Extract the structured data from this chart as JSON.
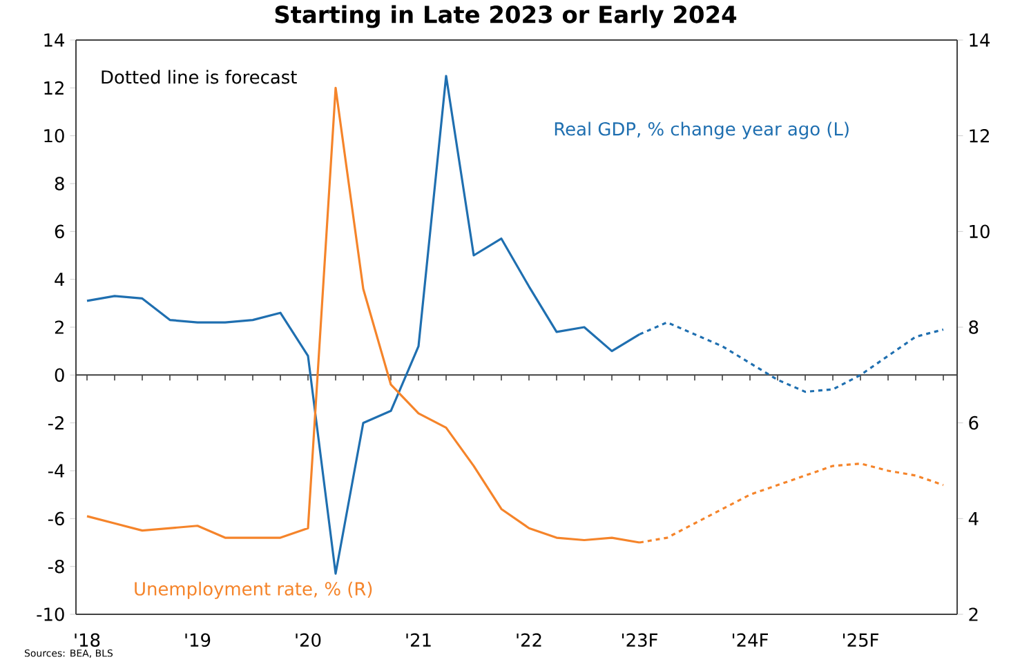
{
  "chart_data": {
    "type": "line",
    "title": "Starting in Late 2023 or Early 2024",
    "categories": [
      "'18",
      null,
      null,
      null,
      "'19",
      null,
      null,
      null,
      "'20",
      null,
      null,
      null,
      "'21",
      null,
      null,
      null,
      "'22",
      null,
      null,
      null,
      "'23F",
      null,
      null,
      null,
      "'24F",
      null,
      null,
      null,
      "'25F",
      null,
      null,
      null
    ],
    "ylim": [
      -10,
      14
    ],
    "yticks": [
      -10,
      -8,
      -6,
      -4,
      -2,
      0,
      2,
      4,
      6,
      8,
      10,
      12,
      14
    ],
    "y2lim": [
      2,
      14
    ],
    "y2ticks": [
      2,
      4,
      6,
      8,
      10,
      12,
      14
    ],
    "annotations": [
      "Dotted line is forecast",
      "Sources: BEA, BLS"
    ],
    "series": [
      {
        "name": "Real GDP, % change year ago (L)",
        "color": "#1f6fb0",
        "line_style": "solid",
        "values": [
          3.1,
          3.3,
          3.2,
          2.3,
          2.2,
          2.2,
          2.3,
          2.6,
          0.8,
          -8.3,
          -2.0,
          -1.5,
          1.2,
          12.5,
          5.0,
          5.7,
          3.7,
          1.8,
          2.0,
          1.0,
          1.7,
          null,
          null,
          null,
          null,
          null,
          null,
          null,
          null,
          null,
          null,
          null
        ]
      },
      {
        "color": "#1f6fb0",
        "line_style": "dashed",
        "values": [
          null,
          null,
          null,
          null,
          null,
          null,
          null,
          null,
          null,
          null,
          null,
          null,
          null,
          null,
          null,
          null,
          null,
          null,
          null,
          null,
          1.7,
          2.2,
          1.7,
          1.2,
          0.5,
          -0.2,
          -0.7,
          -0.6,
          0.0,
          0.8,
          1.6,
          1.9
        ]
      },
      {
        "name": "Unemployment rate, % (R)",
        "color": "#f5842a",
        "line_style": "solid",
        "axis": "y2",
        "values": [
          4.05,
          3.9,
          3.75,
          3.8,
          3.85,
          3.6,
          3.6,
          3.6,
          3.8,
          13.0,
          8.8,
          6.8,
          6.2,
          5.9,
          5.1,
          4.2,
          3.8,
          3.6,
          3.55,
          3.6,
          3.5,
          null,
          null,
          null,
          null,
          null,
          null,
          null,
          null,
          null,
          null,
          null
        ]
      },
      {
        "color": "#f5842a",
        "line_style": "dashed",
        "axis": "y2",
        "values": [
          null,
          null,
          null,
          null,
          null,
          null,
          null,
          null,
          null,
          null,
          null,
          null,
          null,
          null,
          null,
          null,
          null,
          null,
          null,
          null,
          3.5,
          3.6,
          3.9,
          4.2,
          4.5,
          4.7,
          4.9,
          5.1,
          5.15,
          5.0,
          4.9,
          4.7
        ]
      }
    ]
  }
}
